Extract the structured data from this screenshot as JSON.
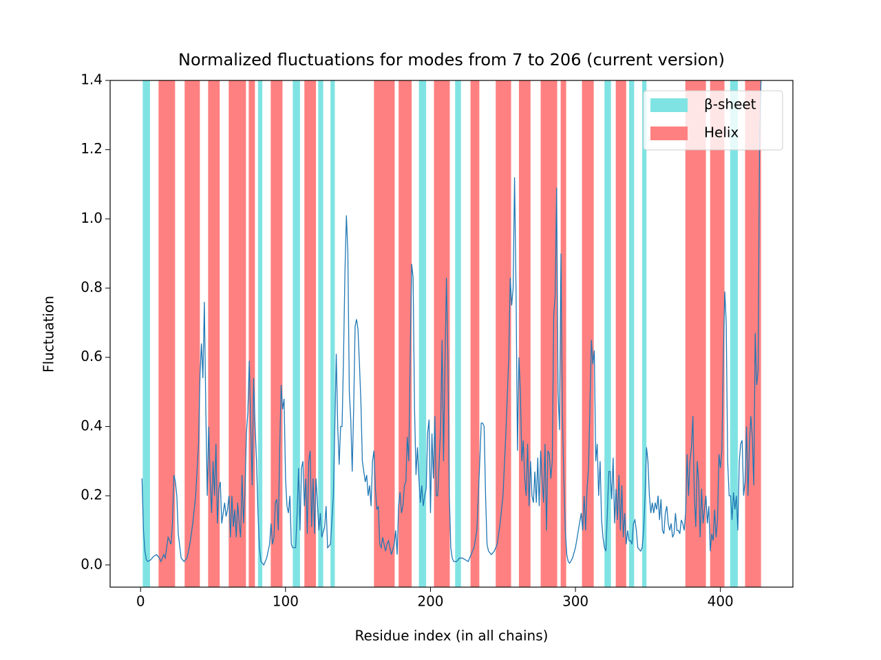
{
  "chart_data": {
    "type": "line",
    "title": "Normalized fluctuations for modes from 7 to 206 (current version)",
    "x_label": "Residue index (in all chains)",
    "y_label": "Fluctuation",
    "xlim": [
      -21,
      450
    ],
    "ylim": [
      -0.064,
      1.4
    ],
    "xticks": [
      0,
      100,
      200,
      300,
      400
    ],
    "yticks": [
      {
        "value": 0,
        "label": "0.0"
      },
      0.2,
      0.4,
      0.6,
      0.8,
      {
        "value": 1,
        "label": "1.0"
      },
      1.2,
      1.4
    ],
    "legend_position": "upper right",
    "spans": [
      {
        "name": "β-sheet",
        "color": "#80e3e3",
        "ranges": [
          [
            1.5,
            6.5
          ],
          [
            81,
            84
          ],
          [
            105,
            110
          ],
          [
            122.5,
            126
          ],
          [
            131,
            134
          ],
          [
            192,
            197
          ],
          [
            217,
            221
          ],
          [
            320,
            324.5
          ],
          [
            337,
            340.5
          ],
          [
            346,
            349
          ],
          [
            406.7,
            412
          ]
        ]
      },
      {
        "name": "Helix",
        "color": "#ff8080",
        "ranges": [
          [
            12.4,
            23.8
          ],
          [
            30.4,
            40.9
          ],
          [
            46.6,
            54.6
          ],
          [
            60.8,
            72.7
          ],
          [
            74.6,
            78.9
          ],
          [
            89.8,
            97.9
          ],
          [
            113,
            121
          ],
          [
            161,
            175.3
          ],
          [
            178,
            187
          ],
          [
            202.4,
            213.3
          ],
          [
            227.6,
            233.7
          ],
          [
            245,
            255.6
          ],
          [
            261,
            269
          ],
          [
            276,
            287.4
          ],
          [
            289.8,
            293.6
          ],
          [
            304.5,
            312.6
          ],
          [
            327.8,
            335
          ],
          [
            375.8,
            390
          ],
          [
            392.9,
            402.8
          ],
          [
            417,
            428
          ]
        ]
      }
    ],
    "series": [
      {
        "color": "#1f77b4",
        "x": [
          1,
          2,
          3,
          4,
          5,
          7,
          9,
          11,
          13,
          14,
          16,
          17,
          19,
          21,
          22,
          23,
          24,
          25,
          26,
          28,
          30,
          32,
          34,
          36,
          38,
          40,
          41,
          42,
          43,
          44,
          45,
          46,
          47,
          48,
          49,
          50,
          51,
          52,
          53,
          54,
          55,
          56,
          57,
          58,
          59,
          60,
          61,
          62,
          63,
          64,
          65,
          66,
          67,
          68,
          69,
          70,
          71,
          72,
          73,
          74,
          75,
          76,
          77,
          78,
          79,
          80,
          81,
          82,
          83,
          85,
          87,
          89,
          90,
          91,
          92,
          93,
          94,
          95,
          96,
          97,
          98,
          99,
          100,
          101,
          102,
          103,
          104,
          105,
          107,
          108,
          109,
          110,
          111,
          112,
          113,
          114,
          115,
          116,
          117,
          118,
          119,
          120,
          121,
          122,
          123,
          124,
          125,
          127,
          128,
          129,
          131,
          133,
          134,
          135,
          136,
          137,
          138,
          139,
          140,
          141,
          142,
          143,
          144,
          145,
          146,
          147,
          148,
          149,
          150,
          151,
          152,
          153,
          154,
          155,
          156,
          157,
          158,
          159,
          160,
          161,
          162,
          163,
          164,
          165,
          166,
          167,
          168,
          169,
          170,
          171,
          172,
          173,
          175,
          176,
          177,
          178,
          179,
          180,
          181,
          182,
          183,
          184,
          185,
          186,
          187,
          188,
          189,
          190,
          191,
          192,
          193,
          194,
          195,
          196,
          197,
          198,
          199,
          200,
          201,
          202,
          203,
          204,
          205,
          206,
          207,
          208,
          209,
          210,
          211,
          212,
          213,
          214,
          215,
          216,
          218,
          220,
          222,
          224,
          226,
          228,
          230,
          232,
          233,
          234,
          235,
          236,
          237,
          238,
          239,
          240,
          242,
          244,
          246,
          248,
          250,
          252,
          254,
          255,
          256,
          257,
          258,
          259,
          260,
          261,
          262,
          263,
          264,
          265,
          266,
          267,
          268,
          269,
          270,
          271,
          272,
          273,
          274,
          275,
          276,
          277,
          278,
          279,
          280,
          281,
          282,
          283,
          284,
          285,
          286,
          287,
          288,
          289,
          290,
          291,
          292,
          293,
          294,
          295,
          296,
          298,
          300,
          302,
          304,
          305,
          306,
          307,
          308,
          309,
          310,
          311,
          312,
          313,
          314,
          315,
          316,
          317,
          318,
          319,
          320,
          321,
          322,
          323,
          324,
          325,
          326,
          327,
          328,
          329,
          330,
          331,
          332,
          333,
          334,
          335,
          336,
          337,
          338,
          339,
          340,
          341,
          342,
          343,
          345,
          346,
          347,
          348,
          349,
          350,
          351,
          352,
          353,
          354,
          355,
          356,
          357,
          358,
          359,
          360,
          361,
          362,
          363,
          364,
          365,
          366,
          367,
          368,
          369,
          370,
          371,
          372,
          373,
          374,
          375,
          376,
          377,
          378,
          379,
          380,
          381,
          382,
          383,
          384,
          385,
          386,
          387,
          388,
          389,
          390,
          391,
          392,
          393,
          394,
          395,
          396,
          397,
          398,
          399,
          400,
          401,
          402,
          403,
          404,
          405,
          406,
          407,
          408,
          409,
          410,
          411,
          412,
          413,
          414,
          415,
          416,
          417,
          418,
          419,
          420,
          421,
          422,
          423,
          424,
          425,
          426,
          427,
          428
        ],
        "values": [
          0.25,
          0.1,
          0.04,
          0.015,
          0.01,
          0.015,
          0.025,
          0.03,
          0.02,
          0.01,
          0.03,
          0.02,
          0.08,
          0.06,
          0.12,
          0.26,
          0.24,
          0.2,
          0.09,
          0.02,
          0.01,
          0.02,
          0.06,
          0.12,
          0.2,
          0.35,
          0.55,
          0.64,
          0.54,
          0.76,
          0.45,
          0.2,
          0.4,
          0.25,
          0.15,
          0.3,
          0.2,
          0.35,
          0.12,
          0.22,
          0.24,
          0.12,
          0.15,
          0.18,
          0.14,
          0.16,
          0.2,
          0.08,
          0.2,
          0.11,
          0.16,
          0.08,
          0.18,
          0.12,
          0.08,
          0.26,
          0.12,
          0.21,
          0.38,
          0.44,
          0.59,
          0.4,
          0.23,
          0.54,
          0.4,
          0.3,
          0.15,
          0.05,
          0.01,
          0.0,
          0.02,
          0.06,
          0.12,
          0.06,
          0.08,
          0.18,
          0.19,
          0.1,
          0.34,
          0.52,
          0.45,
          0.48,
          0.25,
          0.17,
          0.15,
          0.2,
          0.06,
          0.05,
          0.05,
          0.15,
          0.28,
          0.1,
          0.28,
          0.3,
          0.17,
          0.25,
          0.09,
          0.3,
          0.33,
          0.11,
          0.25,
          0.09,
          0.25,
          0.18,
          0.1,
          0.15,
          0.08,
          0.11,
          0.17,
          0.05,
          0.06,
          0.2,
          0.4,
          0.61,
          0.4,
          0.29,
          0.4,
          0.4,
          0.6,
          0.85,
          1.01,
          0.9,
          0.5,
          0.42,
          0.27,
          0.45,
          0.69,
          0.71,
          0.68,
          0.58,
          0.47,
          0.3,
          0.27,
          0.24,
          0.26,
          0.2,
          0.23,
          0.17,
          0.3,
          0.33,
          0.22,
          0.16,
          0.17,
          0.06,
          0.05,
          0.08,
          0.06,
          0.04,
          0.06,
          0.07,
          0.05,
          0.03,
          0.06,
          0.1,
          0.03,
          0.17,
          0.21,
          0.15,
          0.17,
          0.23,
          0.24,
          0.37,
          0.3,
          0.6,
          0.87,
          0.83,
          0.45,
          0.26,
          0.34,
          0.25,
          0.18,
          0.23,
          0.17,
          0.2,
          0.22,
          0.38,
          0.42,
          0.15,
          0.38,
          0.25,
          0.43,
          0.2,
          0.2,
          0.3,
          0.4,
          0.65,
          0.3,
          0.58,
          0.83,
          0.6,
          0.2,
          0.05,
          0.02,
          0.01,
          0.01,
          0.02,
          0.02,
          0.015,
          0.01,
          0.03,
          0.05,
          0.1,
          0.2,
          0.3,
          0.41,
          0.41,
          0.4,
          0.2,
          0.06,
          0.04,
          0.03,
          0.04,
          0.06,
          0.12,
          0.2,
          0.38,
          0.6,
          0.83,
          0.75,
          0.8,
          1.12,
          0.8,
          0.33,
          0.6,
          0.5,
          0.3,
          0.36,
          0.25,
          0.2,
          0.35,
          0.17,
          0.3,
          0.2,
          0.18,
          0.27,
          0.18,
          0.31,
          0.17,
          0.33,
          0.25,
          0.18,
          0.35,
          0.1,
          0.33,
          0.32,
          0.25,
          0.3,
          0.72,
          0.78,
          1.09,
          0.5,
          0.39,
          0.9,
          0.43,
          0.25,
          0.1,
          0.03,
          0.01,
          0.005,
          0.02,
          0.05,
          0.1,
          0.15,
          0.1,
          0.2,
          0.1,
          0.22,
          0.28,
          0.46,
          0.65,
          0.58,
          0.62,
          0.3,
          0.35,
          0.2,
          0.3,
          0.13,
          0.08,
          0.05,
          0.04,
          0.15,
          0.27,
          0.27,
          0.19,
          0.31,
          0.12,
          0.22,
          0.13,
          0.26,
          0.1,
          0.23,
          0.08,
          0.15,
          0.06,
          0.1,
          0.07,
          0.07,
          0.06,
          0.12,
          0.13,
          0.1,
          0.05,
          0.04,
          0.05,
          0.1,
          0.2,
          0.34,
          0.3,
          0.2,
          0.15,
          0.18,
          0.15,
          0.18,
          0.16,
          0.2,
          0.13,
          0.19,
          0.1,
          0.09,
          0.15,
          0.17,
          0.12,
          0.1,
          0.12,
          0.08,
          0.09,
          0.15,
          0.1,
          0.1,
          0.09,
          0.13,
          0.12,
          0.1,
          0.15,
          0.32,
          0.2,
          0.3,
          0.34,
          0.43,
          0.2,
          0.11,
          0.3,
          0.24,
          0.08,
          0.22,
          0.12,
          0.16,
          0.2,
          0.12,
          0.17,
          0.04,
          0.09,
          0.07,
          0.16,
          0.08,
          0.13,
          0.32,
          0.28,
          0.33,
          0.6,
          0.79,
          0.7,
          0.3,
          0.2,
          0.2,
          0.13,
          0.21,
          0.16,
          0.2,
          0.1,
          0.3,
          0.35,
          0.36,
          0.2,
          0.24,
          0.4,
          0.2,
          0.35,
          0.43,
          0.37,
          0.23,
          0.67,
          0.52,
          0.56,
          1.22,
          1.4
        ]
      }
    ]
  }
}
